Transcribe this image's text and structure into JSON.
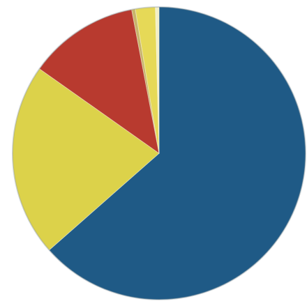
{
  "chart_data": {
    "type": "pie",
    "start_angle_deg": 0,
    "direction": "clockwise",
    "slices": [
      {
        "value": 63.5,
        "color": "#1f5a86"
      },
      {
        "value": 21.3,
        "color": "#dcd24a"
      },
      {
        "value": 12.2,
        "color": "#b83a2f"
      },
      {
        "value": 0.4,
        "color": "#c8b46a"
      },
      {
        "value": 2.2,
        "color": "#e6d957"
      },
      {
        "value": 0.4,
        "color": "#f3efc7"
      }
    ]
  }
}
